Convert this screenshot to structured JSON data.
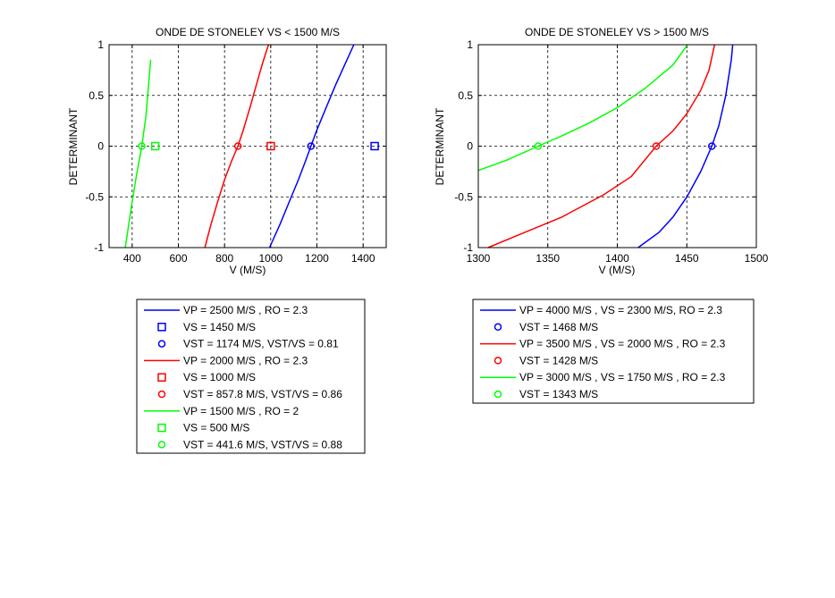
{
  "chart_data": [
    {
      "type": "line",
      "title": "ONDE DE STONELEY VS < 1500 M/S",
      "xlabel": "V (M/S)",
      "ylabel": "DETERMINANT",
      "xlim": [
        300,
        1500
      ],
      "ylim": [
        -1,
        1
      ],
      "xticks": [
        400,
        600,
        800,
        1000,
        1200,
        1400
      ],
      "yticks": [
        -1,
        -0.5,
        0,
        0.5,
        1
      ],
      "xtick_labels": [
        "400",
        "600",
        "800",
        "1000",
        "1200",
        "1400"
      ],
      "ytick_labels": [
        "-1",
        "-0.5",
        "0",
        "0.5",
        "1"
      ],
      "grid": true,
      "legend_position": "below",
      "series": [
        {
          "name": "VP = 2500 M/S , RO = 2.3",
          "color": "#0000ff",
          "kind": "line",
          "x": [
            995,
            1040,
            1080,
            1120,
            1150,
            1174,
            1200,
            1240,
            1280,
            1320,
            1360
          ],
          "y": [
            -1,
            -0.77,
            -0.55,
            -0.33,
            -0.15,
            0,
            0.16,
            0.38,
            0.6,
            0.8,
            1
          ]
        },
        {
          "name": "VS = 1450 M/S",
          "color": "#0000ff",
          "kind": "square",
          "x": [
            1450
          ],
          "y": [
            0
          ]
        },
        {
          "name": "VST = 1174 M/S, VST/VS = 0.81",
          "color": "#0000ff",
          "kind": "circle",
          "x": [
            1174
          ],
          "y": [
            0
          ]
        },
        {
          "name": "VP = 2000 M/S , RO = 2.3",
          "color": "#ff0000",
          "kind": "line",
          "x": [
            715,
            740,
            770,
            800,
            830,
            857.8,
            880,
            910,
            940,
            965,
            990
          ],
          "y": [
            -1,
            -0.78,
            -0.55,
            -0.33,
            -0.15,
            0,
            0.15,
            0.38,
            0.62,
            0.82,
            1
          ]
        },
        {
          "name": "VS = 1000 M/S",
          "color": "#ff0000",
          "kind": "square",
          "x": [
            1000
          ],
          "y": [
            0
          ]
        },
        {
          "name": "VST = 857.8 M/S, VST/VS = 0.86",
          "color": "#ff0000",
          "kind": "circle",
          "x": [
            857.8
          ],
          "y": [
            0
          ]
        },
        {
          "name": "VP = 1500 M/S , RO = 2",
          "color": "#00ff00",
          "kind": "line",
          "x": [
            370,
            400,
            420,
            441.6,
            460,
            480
          ],
          "y": [
            -1,
            -0.55,
            -0.27,
            0,
            0.3,
            0.85
          ]
        },
        {
          "name": "VS = 500 M/S",
          "color": "#00ff00",
          "kind": "square",
          "x": [
            500
          ],
          "y": [
            0
          ]
        },
        {
          "name": "VST = 441.6 M/S, VST/VS = 0.88",
          "color": "#00ff00",
          "kind": "circle",
          "x": [
            441.6
          ],
          "y": [
            0
          ]
        }
      ]
    },
    {
      "type": "line",
      "title": "ONDE DE STONELEY VS > 1500 M/S",
      "xlabel": "V (M/S)",
      "ylabel": "DETERMINANT",
      "xlim": [
        1300,
        1500
      ],
      "ylim": [
        -1,
        1
      ],
      "xticks": [
        1300,
        1350,
        1400,
        1450,
        1500
      ],
      "yticks": [
        -1,
        -0.5,
        0,
        0.5,
        1
      ],
      "xtick_labels": [
        "1300",
        "1350",
        "1400",
        "1450",
        "1500"
      ],
      "ytick_labels": [
        "-1",
        "-0.5",
        "0",
        "0.5",
        "1"
      ],
      "grid": true,
      "legend_position": "below",
      "series": [
        {
          "name": "VP = 4000 M/S , VS = 2300 M/S,  RO = 2.3",
          "color": "#0000ff",
          "kind": "line",
          "x": [
            1415,
            1430,
            1440,
            1450,
            1460,
            1468,
            1473,
            1478,
            1482,
            1483
          ],
          "y": [
            -1,
            -0.85,
            -0.7,
            -0.5,
            -0.25,
            0,
            0.2,
            0.5,
            0.85,
            1
          ]
        },
        {
          "name": "VST = 1468 M/S",
          "color": "#0000ff",
          "kind": "circle",
          "x": [
            1468
          ],
          "y": [
            0
          ]
        },
        {
          "name": "VP = 3500 M/S , VS = 2000 M/S , RO = 2.3",
          "color": "#ff0000",
          "kind": "line",
          "x": [
            1307,
            1330,
            1360,
            1390,
            1410,
            1428,
            1440,
            1450,
            1460,
            1466,
            1470
          ],
          "y": [
            -1,
            -0.87,
            -0.7,
            -0.48,
            -0.3,
            0,
            0.15,
            0.32,
            0.55,
            0.75,
            1
          ]
        },
        {
          "name": "VST = 1428 M/S",
          "color": "#ff0000",
          "kind": "circle",
          "x": [
            1428
          ],
          "y": [
            0
          ]
        },
        {
          "name": "VP = 3000 M/S , VS = 1750 M/S , RO = 2.3",
          "color": "#00ff00",
          "kind": "line",
          "x": [
            1300,
            1320,
            1343,
            1360,
            1380,
            1400,
            1420,
            1440,
            1450
          ],
          "y": [
            -0.24,
            -0.14,
            0,
            0.1,
            0.23,
            0.38,
            0.57,
            0.8,
            0.99
          ]
        },
        {
          "name": "VST = 1343 M/S",
          "color": "#00ff00",
          "kind": "circle",
          "x": [
            1343
          ],
          "y": [
            0
          ]
        }
      ]
    }
  ]
}
